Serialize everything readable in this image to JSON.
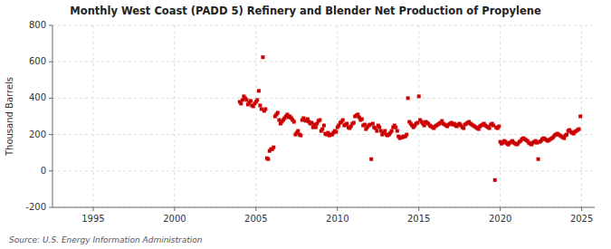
{
  "chart_data": {
    "type": "scatter",
    "title": "Monthly West Coast (PADD 5) Refinery and Blender Net Production of Propylene",
    "ylabel": "Thousand Barrels",
    "source": "Source: U.S. Energy Information Administration",
    "color": "#cc0000",
    "marker": "square",
    "grid": true,
    "xlim": [
      1992.5,
      2025.8
    ],
    "ylim": [
      -200,
      800
    ],
    "xticks": [
      1995,
      2000,
      2005,
      2010,
      2015,
      2020,
      2025
    ],
    "yticks": [
      -200,
      0,
      200,
      400,
      600,
      800
    ],
    "x": [
      2004.0,
      2004.08,
      2004.17,
      2004.25,
      2004.33,
      2004.42,
      2004.5,
      2004.58,
      2004.67,
      2004.75,
      2004.83,
      2004.92,
      2005.0,
      2005.08,
      2005.17,
      2005.25,
      2005.33,
      2005.42,
      2005.5,
      2005.58,
      2005.67,
      2005.75,
      2005.83,
      2005.92,
      2006.0,
      2006.08,
      2006.17,
      2006.25,
      2006.33,
      2006.42,
      2006.5,
      2006.58,
      2006.67,
      2006.75,
      2006.83,
      2006.92,
      2007.0,
      2007.08,
      2007.17,
      2007.25,
      2007.33,
      2007.42,
      2007.5,
      2007.58,
      2007.67,
      2007.75,
      2007.83,
      2007.92,
      2008.0,
      2008.08,
      2008.17,
      2008.25,
      2008.33,
      2008.42,
      2008.5,
      2008.58,
      2008.67,
      2008.75,
      2008.83,
      2008.92,
      2009.0,
      2009.08,
      2009.17,
      2009.25,
      2009.33,
      2009.42,
      2009.5,
      2009.58,
      2009.67,
      2009.75,
      2009.83,
      2009.92,
      2010.0,
      2010.08,
      2010.17,
      2010.25,
      2010.33,
      2010.42,
      2010.5,
      2010.58,
      2010.67,
      2010.75,
      2010.83,
      2010.92,
      2011.0,
      2011.08,
      2011.17,
      2011.25,
      2011.33,
      2011.42,
      2011.5,
      2011.58,
      2011.67,
      2011.75,
      2011.83,
      2011.92,
      2012.0,
      2012.08,
      2012.17,
      2012.25,
      2012.33,
      2012.42,
      2012.5,
      2012.58,
      2012.67,
      2012.75,
      2012.83,
      2012.92,
      2013.0,
      2013.08,
      2013.17,
      2013.25,
      2013.33,
      2013.42,
      2013.5,
      2013.58,
      2013.67,
      2013.75,
      2013.83,
      2013.92,
      2014.0,
      2014.08,
      2014.17,
      2014.25,
      2014.33,
      2014.42,
      2014.5,
      2014.58,
      2014.67,
      2014.75,
      2014.83,
      2014.92,
      2015.0,
      2015.08,
      2015.17,
      2015.25,
      2015.33,
      2015.42,
      2015.5,
      2015.58,
      2015.67,
      2015.75,
      2015.83,
      2015.92,
      2016.0,
      2016.08,
      2016.17,
      2016.25,
      2016.33,
      2016.42,
      2016.5,
      2016.58,
      2016.67,
      2016.75,
      2016.83,
      2016.92,
      2017.0,
      2017.08,
      2017.17,
      2017.25,
      2017.33,
      2017.42,
      2017.5,
      2017.58,
      2017.67,
      2017.75,
      2017.83,
      2017.92,
      2018.0,
      2018.08,
      2018.17,
      2018.25,
      2018.33,
      2018.42,
      2018.5,
      2018.58,
      2018.67,
      2018.75,
      2018.83,
      2018.92,
      2019.0,
      2019.08,
      2019.17,
      2019.25,
      2019.33,
      2019.42,
      2019.5,
      2019.58,
      2019.67,
      2019.75,
      2019.83,
      2019.92,
      2020.0,
      2020.08,
      2020.17,
      2020.25,
      2020.33,
      2020.42,
      2020.5,
      2020.58,
      2020.67,
      2020.75,
      2020.83,
      2020.92,
      2021.0,
      2021.08,
      2021.17,
      2021.25,
      2021.33,
      2021.42,
      2021.5,
      2021.58,
      2021.67,
      2021.75,
      2021.83,
      2021.92,
      2022.0,
      2022.08,
      2022.17,
      2022.25,
      2022.33,
      2022.42,
      2022.5,
      2022.58,
      2022.67,
      2022.75,
      2022.83,
      2022.92,
      2023.0,
      2023.08,
      2023.17,
      2023.25,
      2023.33,
      2023.42,
      2023.5,
      2023.58,
      2023.67,
      2023.75,
      2023.83,
      2023.92,
      2024.0,
      2024.08,
      2024.17,
      2024.25,
      2024.33,
      2024.42,
      2024.5,
      2024.58,
      2024.67,
      2024.75,
      2024.83,
      2024.92
    ],
    "values": [
      380,
      370,
      390,
      410,
      400,
      390,
      365,
      375,
      385,
      360,
      355,
      370,
      380,
      390,
      440,
      360,
      340,
      625,
      330,
      340,
      70,
      65,
      110,
      120,
      120,
      130,
      300,
      310,
      320,
      280,
      260,
      270,
      280,
      290,
      300,
      310,
      295,
      300,
      290,
      280,
      270,
      200,
      210,
      220,
      200,
      195,
      280,
      290,
      280,
      275,
      285,
      270,
      260,
      265,
      240,
      255,
      240,
      260,
      275,
      280,
      220,
      230,
      250,
      205,
      200,
      210,
      195,
      200,
      200,
      210,
      220,
      215,
      240,
      250,
      265,
      270,
      280,
      250,
      255,
      260,
      240,
      235,
      245,
      260,
      265,
      300,
      305,
      310,
      295,
      280,
      285,
      250,
      255,
      230,
      240,
      250,
      255,
      65,
      260,
      240,
      235,
      220,
      250,
      240,
      220,
      200,
      210,
      220,
      200,
      195,
      200,
      210,
      220,
      240,
      250,
      240,
      220,
      190,
      180,
      185,
      185,
      190,
      190,
      200,
      400,
      270,
      260,
      250,
      240,
      250,
      260,
      265,
      410,
      280,
      270,
      260,
      250,
      270,
      265,
      260,
      250,
      245,
      240,
      235,
      245,
      250,
      255,
      260,
      265,
      275,
      260,
      255,
      250,
      245,
      255,
      260,
      265,
      255,
      260,
      250,
      245,
      255,
      260,
      250,
      240,
      235,
      255,
      260,
      265,
      270,
      260,
      255,
      250,
      245,
      240,
      235,
      230,
      245,
      250,
      255,
      260,
      250,
      245,
      240,
      235,
      255,
      260,
      250,
      -50,
      240,
      235,
      245,
      160,
      150,
      155,
      165,
      160,
      150,
      145,
      155,
      160,
      165,
      155,
      150,
      145,
      150,
      160,
      165,
      175,
      180,
      175,
      170,
      165,
      155,
      150,
      145,
      155,
      160,
      165,
      155,
      65,
      160,
      165,
      175,
      180,
      175,
      170,
      165,
      170,
      175,
      180,
      185,
      195,
      200,
      205,
      200,
      195,
      190,
      185,
      180,
      195,
      200,
      220,
      225,
      215,
      210,
      205,
      215,
      220,
      225,
      230,
      300
    ]
  }
}
